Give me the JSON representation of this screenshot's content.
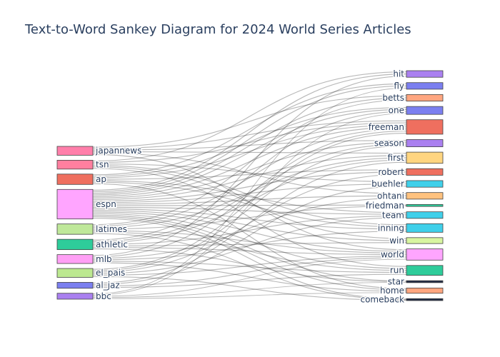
{
  "chart_data": {
    "type": "sankey",
    "title": "Text-to-Word Sankey Diagram for 2024 World Series Articles",
    "sources": [
      {
        "label": "japannews",
        "weight": 3,
        "color": "#FF7FAA"
      },
      {
        "label": "tsn",
        "weight": 3,
        "color": "#FF7F9F"
      },
      {
        "label": "ap",
        "weight": 3.5,
        "color": "#EF6F5F"
      },
      {
        "label": "espn",
        "weight": 10,
        "color": "#FFA5FF"
      },
      {
        "label": "latimes",
        "weight": 3.5,
        "color": "#BFE89A"
      },
      {
        "label": "athletic",
        "weight": 3.5,
        "color": "#2ECC9A"
      },
      {
        "label": "mlb",
        "weight": 3,
        "color": "#FF9FF5"
      },
      {
        "label": "el_pais",
        "weight": 3,
        "color": "#BCE890"
      },
      {
        "label": "al_jaz",
        "weight": 2,
        "color": "#7B7FF0"
      },
      {
        "label": "bbc",
        "weight": 2,
        "color": "#AA80F0"
      }
    ],
    "targets": [
      {
        "label": "hit",
        "weight": 1,
        "color": "#AA80F0"
      },
      {
        "label": "fly",
        "weight": 1,
        "color": "#7B7FF0"
      },
      {
        "label": "betts",
        "weight": 1,
        "color": "#FFA680"
      },
      {
        "label": "one",
        "weight": 1.2,
        "color": "#7B7FF0"
      },
      {
        "label": "freeman",
        "weight": 2.2,
        "color": "#EF6F5F"
      },
      {
        "label": "season",
        "weight": 1.1,
        "color": "#AA80F0"
      },
      {
        "label": "first",
        "weight": 1.7,
        "color": "#FFD580"
      },
      {
        "label": "robert",
        "weight": 1,
        "color": "#EF6F5F"
      },
      {
        "label": "buehler",
        "weight": 1,
        "color": "#3FD0EA"
      },
      {
        "label": "ohtani",
        "weight": 1,
        "color": "#FFC27F"
      },
      {
        "label": "friedman",
        "weight": 0.3,
        "color": "#2ECC9A"
      },
      {
        "label": "team",
        "weight": 1,
        "color": "#3FD0EA"
      },
      {
        "label": "inning",
        "weight": 1.3,
        "color": "#3FD0EA"
      },
      {
        "label": "win",
        "weight": 0.9,
        "color": "#D8F5A0"
      },
      {
        "label": "world",
        "weight": 1.7,
        "color": "#FFA5FF"
      },
      {
        "label": "run",
        "weight": 1.5,
        "color": "#2ECC9A"
      },
      {
        "label": "star",
        "weight": 0.3,
        "color": "#1F2A44"
      },
      {
        "label": "home",
        "weight": 0.8,
        "color": "#FFA680"
      },
      {
        "label": "comeback",
        "weight": 0.3,
        "color": "#1F2A44"
      }
    ],
    "links": [
      [
        "japannews",
        "betts"
      ],
      [
        "japannews",
        "ohtani"
      ],
      [
        "japannews",
        "freeman"
      ],
      [
        "japannews",
        "world"
      ],
      [
        "japannews",
        "first"
      ],
      [
        "japannews",
        "season"
      ],
      [
        "tsn",
        "hit"
      ],
      [
        "tsn",
        "freeman"
      ],
      [
        "tsn",
        "buehler"
      ],
      [
        "tsn",
        "win"
      ],
      [
        "tsn",
        "inning"
      ],
      [
        "tsn",
        "run"
      ],
      [
        "ap",
        "fly"
      ],
      [
        "ap",
        "freeman"
      ],
      [
        "ap",
        "robert"
      ],
      [
        "ap",
        "one"
      ],
      [
        "ap",
        "inning"
      ],
      [
        "ap",
        "team"
      ],
      [
        "ap",
        "home"
      ],
      [
        "espn",
        "hit"
      ],
      [
        "espn",
        "fly"
      ],
      [
        "espn",
        "betts"
      ],
      [
        "espn",
        "one"
      ],
      [
        "espn",
        "freeman"
      ],
      [
        "espn",
        "season"
      ],
      [
        "espn",
        "first"
      ],
      [
        "espn",
        "robert"
      ],
      [
        "espn",
        "buehler"
      ],
      [
        "espn",
        "ohtani"
      ],
      [
        "espn",
        "friedman"
      ],
      [
        "espn",
        "team"
      ],
      [
        "espn",
        "inning"
      ],
      [
        "espn",
        "win"
      ],
      [
        "espn",
        "world"
      ],
      [
        "espn",
        "run"
      ],
      [
        "espn",
        "star"
      ],
      [
        "espn",
        "home"
      ],
      [
        "espn",
        "comeback"
      ],
      [
        "latimes",
        "betts"
      ],
      [
        "latimes",
        "freeman"
      ],
      [
        "latimes",
        "first"
      ],
      [
        "latimes",
        "friedman"
      ],
      [
        "latimes",
        "world"
      ],
      [
        "latimes",
        "run"
      ],
      [
        "latimes",
        "comeback"
      ],
      [
        "athletic",
        "one"
      ],
      [
        "athletic",
        "season"
      ],
      [
        "athletic",
        "first"
      ],
      [
        "athletic",
        "team"
      ],
      [
        "athletic",
        "world"
      ],
      [
        "athletic",
        "star"
      ],
      [
        "athletic",
        "win"
      ],
      [
        "mlb",
        "hit"
      ],
      [
        "mlb",
        "freeman"
      ],
      [
        "mlb",
        "ohtani"
      ],
      [
        "mlb",
        "inning"
      ],
      [
        "mlb",
        "run"
      ],
      [
        "mlb",
        "home"
      ],
      [
        "el_pais",
        "freeman"
      ],
      [
        "el_pais",
        "robert"
      ],
      [
        "el_pais",
        "world"
      ],
      [
        "el_pais",
        "season"
      ],
      [
        "el_pais",
        "team"
      ],
      [
        "el_pais",
        "comeback"
      ],
      [
        "al_jaz",
        "first"
      ],
      [
        "al_jaz",
        "world"
      ],
      [
        "al_jaz",
        "buehler"
      ],
      [
        "al_jaz",
        "run"
      ],
      [
        "bbc",
        "fly"
      ],
      [
        "bbc",
        "one"
      ],
      [
        "bbc",
        "world"
      ],
      [
        "bbc",
        "home"
      ],
      [
        "bbc",
        "star"
      ]
    ]
  }
}
